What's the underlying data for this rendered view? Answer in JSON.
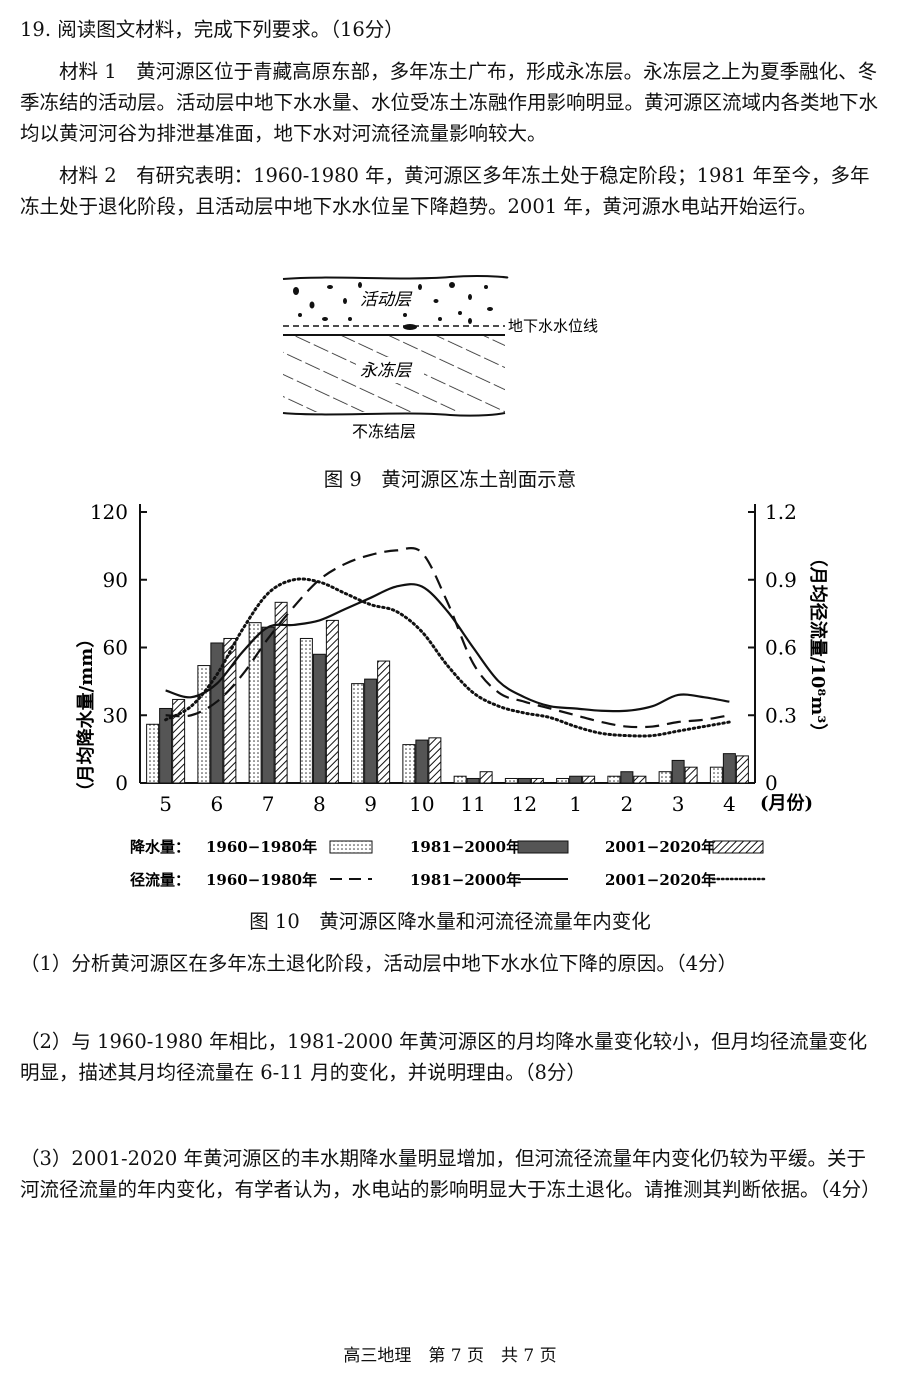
{
  "question": {
    "header": "19. 阅读图文材料，完成下列要求。（16分）",
    "material1": "材料 1　黄河源区位于青藏高原东部，多年冻土广布，形成永冻层。永冻层之上为夏季融化、冬季冻结的活动层。活动层中地下水水量、水位受冻土冻融作用影响明显。黄河源区流域内各类地下水均以黄河河谷为排泄基准面，地下水对河流径流量影响较大。",
    "material2": "材料 2　有研究表明：1960-1980 年，黄河源区多年冻土处于稳定阶段；1981 年至今，多年冻土处于退化阶段，且活动层中地下水水位呈下降趋势。2001 年，黄河源水电站开始运行。"
  },
  "fig9": {
    "caption": "图 9　黄河源区冻土剖面示意",
    "labels": {
      "active_layer": "活动层",
      "water_table": "地下水水位线",
      "permafrost": "永冻层",
      "unfrozen": "不冻结层"
    }
  },
  "fig10": {
    "caption": "图 10　黄河源区降水量和河流径流量年内变化",
    "left_axis_label": "（月均降水量/mm）",
    "right_axis_label": "（月均径流量/10⁸m³）",
    "x_unit": "(月份)",
    "legend": {
      "precip_title": "降水量：",
      "runoff_title": "径流量：",
      "p1": "1960−1980年",
      "p2": "1981−2000年",
      "p3": "2001−2020年",
      "r1": "1960−1980年",
      "r2": "1981−2000年",
      "r3": "2001−2020年"
    }
  },
  "chart_data": {
    "type": "bar",
    "categories": [
      "5",
      "6",
      "7",
      "8",
      "9",
      "10",
      "11",
      "12",
      "1",
      "2",
      "3",
      "4"
    ],
    "left_axis": {
      "ticks": [
        0,
        30,
        60,
        90,
        120
      ],
      "ylim": [
        0,
        120
      ]
    },
    "right_axis": {
      "ticks": [
        "0",
        "0.3",
        "0.6",
        "0.9",
        "1.2"
      ],
      "ylim": [
        0,
        1.2
      ]
    },
    "bar_series": [
      {
        "name": "1960−1980年",
        "values": [
          26,
          52,
          71,
          64,
          44,
          17,
          3,
          2,
          2,
          3,
          5,
          7
        ],
        "style": "dotted"
      },
      {
        "name": "1981−2000年",
        "values": [
          33,
          62,
          69,
          57,
          46,
          19,
          2,
          2,
          3,
          5,
          10,
          13
        ],
        "style": "dark"
      },
      {
        "name": "2001−2020年",
        "values": [
          37,
          64,
          80,
          72,
          54,
          20,
          5,
          2,
          3,
          3,
          7,
          12
        ],
        "style": "hatched"
      }
    ],
    "line_series": [
      {
        "name": "1960−1980年",
        "style": "dashed",
        "x": [
          5,
          5.5,
          6,
          6.5,
          7,
          7.5,
          8,
          8.5,
          9,
          9.5,
          10,
          10.5,
          11,
          11.5,
          12,
          12.5,
          13,
          13.5,
          14,
          14.5,
          15,
          15.5,
          16
        ],
        "y": [
          0.3,
          0.3,
          0.36,
          0.48,
          0.64,
          0.78,
          0.9,
          0.97,
          1.01,
          1.03,
          1.02,
          0.8,
          0.53,
          0.4,
          0.36,
          0.33,
          0.3,
          0.27,
          0.25,
          0.25,
          0.27,
          0.28,
          0.3
        ]
      },
      {
        "name": "1981−2000年",
        "style": "solid",
        "x": [
          5,
          5.5,
          6,
          6.5,
          7,
          7.5,
          8,
          8.5,
          9,
          9.5,
          10,
          10.5,
          11,
          11.5,
          12,
          12.5,
          13,
          13.5,
          14,
          14.5,
          15,
          15.5,
          16
        ],
        "y": [
          0.41,
          0.38,
          0.44,
          0.58,
          0.69,
          0.7,
          0.72,
          0.77,
          0.82,
          0.87,
          0.87,
          0.76,
          0.6,
          0.45,
          0.38,
          0.34,
          0.33,
          0.32,
          0.32,
          0.34,
          0.39,
          0.38,
          0.36
        ]
      },
      {
        "name": "2001−2020年",
        "style": "dotted",
        "x": [
          5,
          5.5,
          6,
          6.5,
          7,
          7.5,
          8,
          8.5,
          9,
          9.5,
          10,
          10.5,
          11,
          11.5,
          12,
          12.5,
          13,
          13.5,
          14,
          14.5,
          15,
          15.5,
          16
        ],
        "y": [
          0.28,
          0.34,
          0.48,
          0.68,
          0.84,
          0.9,
          0.89,
          0.84,
          0.79,
          0.76,
          0.67,
          0.52,
          0.4,
          0.34,
          0.31,
          0.29,
          0.25,
          0.22,
          0.21,
          0.21,
          0.23,
          0.25,
          0.27
        ]
      }
    ]
  },
  "subquestions": {
    "q1": "（1）分析黄河源区在多年冻土退化阶段，活动层中地下水水位下降的原因。（4分）",
    "q2": "（2）与 1960-1980 年相比，1981-2000 年黄河源区的月均降水量变化较小，但月均径流量变化明显，描述其月均径流量在 6-11 月的变化，并说明理由。（8分）",
    "q3": "（3）2001-2020 年黄河源区的丰水期降水量明显增加，但河流径流量年内变化仍较为平缓。关于河流径流量的年内变化，有学者认为，水电站的影响明显大于冻土退化。请推测其判断依据。（4分）"
  },
  "footer": "高三地理　第 7 页　共 7 页"
}
